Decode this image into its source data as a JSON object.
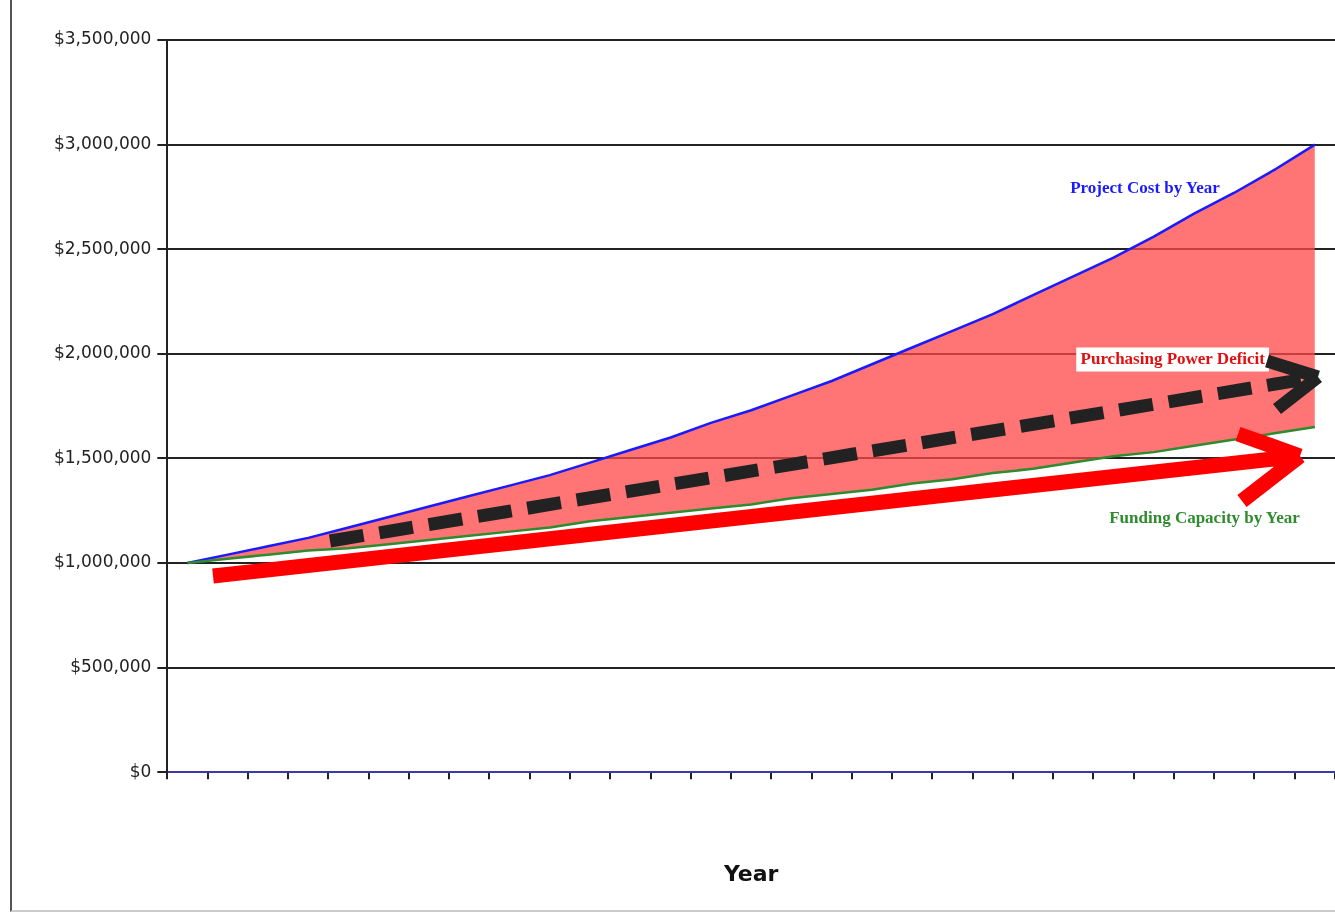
{
  "chart_data": {
    "type": "line",
    "xlabel": "Year",
    "categories": [
      null,
      null,
      null,
      null,
      null,
      null,
      null,
      null,
      null,
      null,
      null,
      null,
      null,
      null,
      null,
      null,
      null,
      null,
      null,
      null,
      null,
      null,
      null,
      null,
      null,
      null,
      null,
      null,
      null
    ],
    "series": [
      {
        "name": "Funding Capacity by Year",
        "type": "line",
        "color": "#2e8b2e",
        "values": [
          1000000,
          1020000,
          1040000,
          1060000,
          1070000,
          1090000,
          1110000,
          1130000,
          1150000,
          1170000,
          1200000,
          1220000,
          1240000,
          1260000,
          1280000,
          1310000,
          1330000,
          1350000,
          1380000,
          1400000,
          1430000,
          1450000,
          1480000,
          1510000,
          1530000,
          1560000,
          1590000,
          1620000,
          1650000
        ]
      },
      {
        "name": "Project Cost by Year",
        "type": "area",
        "color": "#ff4646",
        "values": [
          1000000,
          1040000,
          1080000,
          1120000,
          1170000,
          1220000,
          1270000,
          1320000,
          1370000,
          1420000,
          1480000,
          1540000,
          1600000,
          1670000,
          1730000,
          1800000,
          1870000,
          1950000,
          2030000,
          2110000,
          2190000,
          2280000,
          2370000,
          2460000,
          2560000,
          2670000,
          2770000,
          2880000,
          3000000
        ]
      }
    ],
    "ylim": [
      0,
      3500000
    ],
    "yticks": [
      {
        "value": 0,
        "label": "$0"
      },
      {
        "value": 500000,
        "label": "$500,000"
      },
      {
        "value": 1000000,
        "label": "$1,000,000"
      },
      {
        "value": 1500000,
        "label": "$1,500,000"
      },
      {
        "value": 2000000,
        "label": "$2,000,000"
      },
      {
        "value": 2500000,
        "label": "$2,500,000"
      },
      {
        "value": 3000000,
        "label": "$3,000,000"
      },
      {
        "value": 3500000,
        "label": "$3,500,000"
      }
    ],
    "grid": "y",
    "legend": false,
    "marker": "none",
    "line_style": "solid",
    "annotations": [
      "Purchasing Power Deficit"
    ]
  }
}
